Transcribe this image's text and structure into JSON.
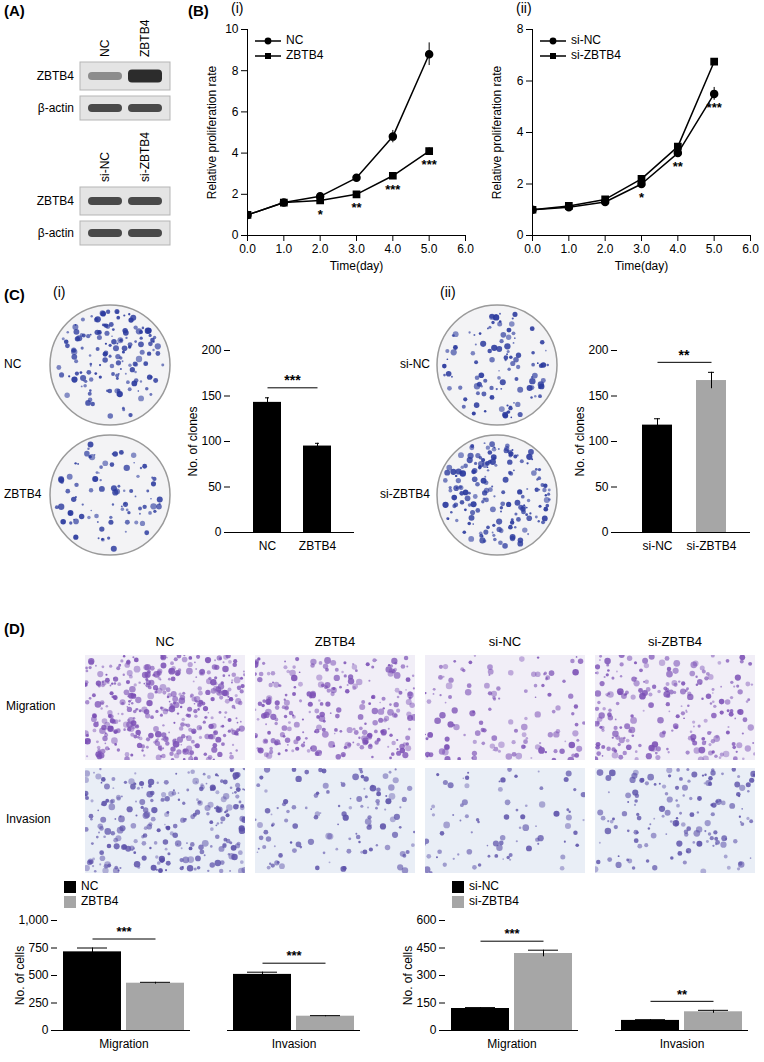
{
  "panel_labels": [
    "(A)",
    "(B)",
    "(C)",
    "(D)"
  ],
  "blots": [
    {
      "lanes": [
        "NC",
        "ZBTB4"
      ],
      "rows": [
        "ZBTB4",
        "β-actin"
      ]
    },
    {
      "lanes": [
        "si-NC",
        "si-ZBTB4"
      ],
      "rows": [
        "ZBTB4",
        "β-actin"
      ]
    }
  ],
  "colony_plates": [
    {
      "subpanel": "(i)",
      "labels": [
        "NC",
        "ZBTB4"
      ]
    },
    {
      "subpanel": "(ii)",
      "labels": [
        "si-NC",
        "si-ZBTB4"
      ]
    }
  ],
  "transwell_images": {
    "columns": [
      "NC",
      "ZBTB4",
      "si-NC",
      "si-ZBTB4"
    ],
    "rows": [
      "Migration",
      "Invasion"
    ]
  },
  "chart_data": [
    {
      "type": "line",
      "title": "(i)",
      "x_label": "Time(day)",
      "y_label": "Relative proliferation rate",
      "x": [
        0,
        1,
        2,
        3,
        4,
        5
      ],
      "xlim": [
        0,
        6
      ],
      "xticks": [
        0,
        1,
        2,
        3,
        4,
        5,
        6
      ],
      "ylim": [
        0,
        10
      ],
      "yticks": [
        0,
        2,
        4,
        6,
        8,
        10
      ],
      "legend": "top-left",
      "series": [
        {
          "name": "NC",
          "color": "#000000",
          "marker": "circle",
          "values": [
            1,
            1.6,
            1.9,
            2.8,
            4.8,
            8.8
          ],
          "errors": [
            0.02,
            0.05,
            0.06,
            0.08,
            0.3,
            0.55
          ]
        },
        {
          "name": "ZBTB4",
          "color": "#000000",
          "marker": "square",
          "values": [
            1,
            1.6,
            1.7,
            2.0,
            2.9,
            4.1
          ],
          "errors": [
            0.02,
            0.05,
            0.05,
            0.07,
            0.1,
            0.15
          ]
        }
      ],
      "annotations": [
        {
          "x": 2,
          "label": "*"
        },
        {
          "x": 3,
          "label": "**"
        },
        {
          "x": 4,
          "label": "***"
        },
        {
          "x": 5,
          "label": "***"
        }
      ]
    },
    {
      "type": "line",
      "title": "(ii)",
      "x_label": "Time(day)",
      "y_label": "Relative proliferation rate",
      "x": [
        0,
        1,
        2,
        3,
        4,
        5
      ],
      "xlim": [
        0,
        6
      ],
      "xticks": [
        0,
        1,
        2,
        3,
        4,
        5,
        6
      ],
      "ylim": [
        0,
        8
      ],
      "yticks": [
        0,
        2,
        4,
        6,
        8
      ],
      "legend": "top-left",
      "series": [
        {
          "name": "si-NC",
          "color": "#000000",
          "marker": "circle",
          "values": [
            1,
            1.1,
            1.3,
            2.0,
            3.2,
            5.5
          ],
          "errors": [
            0.02,
            0.03,
            0.04,
            0.06,
            0.1,
            0.25
          ]
        },
        {
          "name": "si-ZBTB4",
          "color": "#000000",
          "marker": "square",
          "values": [
            1,
            1.15,
            1.4,
            2.2,
            3.45,
            6.75
          ],
          "errors": [
            0.02,
            0.03,
            0.04,
            0.07,
            0.12,
            0.1
          ]
        }
      ],
      "annotations": [
        {
          "x": 3,
          "label": "*"
        },
        {
          "x": 4,
          "label": "**"
        },
        {
          "x": 5,
          "label": "***"
        }
      ]
    },
    {
      "type": "bar",
      "y_label": "No. of clones",
      "categories": [
        "NC",
        "ZBTB4"
      ],
      "values": [
        143,
        95
      ],
      "errors": [
        5,
        3
      ],
      "colors": [
        "#000000",
        "#000000"
      ],
      "ylim": [
        0,
        200
      ],
      "yticks": [
        0,
        50,
        100,
        150,
        200
      ],
      "significance": {
        "categories": [
          "NC",
          "ZBTB4"
        ],
        "label": "***"
      }
    },
    {
      "type": "bar",
      "y_label": "No. of clones",
      "categories": [
        "si-NC",
        "si-ZBTB4"
      ],
      "values": [
        118,
        167
      ],
      "errors": [
        7,
        9
      ],
      "colors": [
        "#000000",
        "#a6a6a6"
      ],
      "ylim": [
        0,
        200
      ],
      "yticks": [
        0,
        50,
        100,
        150,
        200
      ],
      "significance": {
        "categories": [
          "si-NC",
          "si-ZBTB4"
        ],
        "label": "**"
      }
    },
    {
      "type": "bar",
      "y_label": "No. of cells",
      "categories": [
        "Migration",
        "Invasion"
      ],
      "series": [
        {
          "name": "NC",
          "color": "#000000",
          "values": [
            715,
            510
          ],
          "errors": [
            35,
            20
          ]
        },
        {
          "name": "ZBTB4",
          "color": "#a6a6a6",
          "values": [
            430,
            130
          ],
          "errors": [
            8,
            5
          ]
        }
      ],
      "ylim": [
        0,
        1000
      ],
      "yticks": [
        0,
        250,
        500,
        750,
        1000
      ],
      "legend": "top-left",
      "significance": [
        "***",
        "***"
      ]
    },
    {
      "type": "bar",
      "y_label": "No. of cells",
      "categories": [
        "Migration",
        "Invasion"
      ],
      "series": [
        {
          "name": "si-NC",
          "color": "#000000",
          "values": [
            120,
            55
          ],
          "errors": [
            5,
            4
          ]
        },
        {
          "name": "si-ZBTB4",
          "color": "#a6a6a6",
          "values": [
            420,
            102
          ],
          "errors": [
            18,
            8
          ]
        }
      ],
      "ylim": [
        0,
        600
      ],
      "yticks": [
        0,
        150,
        300,
        450,
        600
      ],
      "legend": "top-left",
      "significance": [
        "***",
        "**"
      ]
    }
  ]
}
